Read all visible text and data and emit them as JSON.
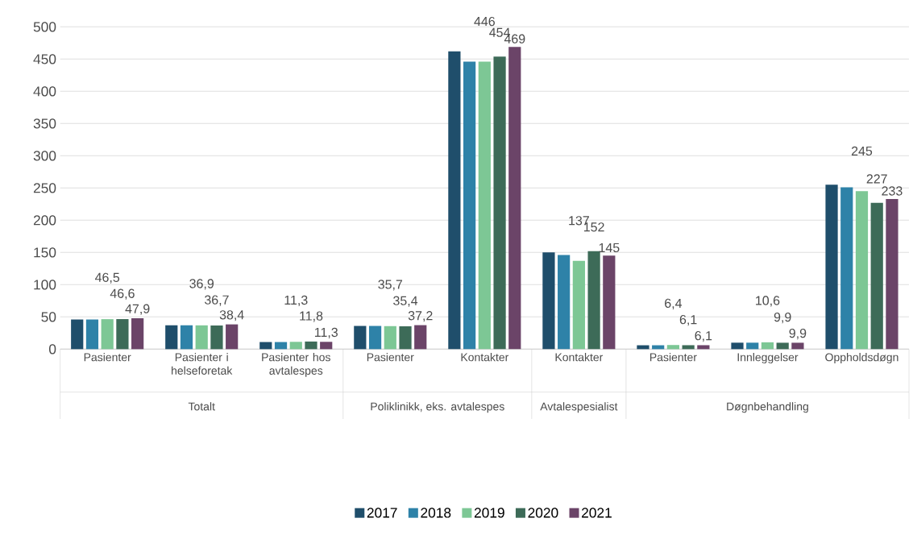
{
  "chart_data": {
    "type": "bar",
    "categories": [
      "Pasienter",
      "Pasienter i helseforetak",
      "Pasienter hos avtalespes",
      "Pasienter",
      "Kontakter",
      "Kontakter",
      "Pasienter",
      "Innleggelser",
      "Oppholdsdøgn"
    ],
    "series": [
      {
        "name": "2017",
        "color": "#1f4e6b",
        "values": [
          46,
          37,
          11,
          36,
          462,
          150,
          6,
          10,
          255
        ]
      },
      {
        "name": "2018",
        "color": "#2e82a8",
        "values": [
          46,
          37,
          11,
          36,
          446,
          146,
          6,
          10,
          251
        ]
      },
      {
        "name": "2019",
        "color": "#7dc795",
        "values": [
          46.5,
          36.9,
          11.3,
          35.7,
          446,
          137,
          6.4,
          10.6,
          245
        ],
        "value_labels": [
          "46,5",
          "36,9",
          "11,3",
          "35,7",
          "446",
          "137",
          "6,4",
          "10,6",
          "245"
        ]
      },
      {
        "name": "2020",
        "color": "#3d6b58",
        "values": [
          46.6,
          36.7,
          11.8,
          35.4,
          454,
          152,
          6.1,
          9.9,
          227
        ],
        "value_labels": [
          "46,6",
          "36,7",
          "11,8",
          "35,4",
          "454",
          "152",
          "6,1",
          "9,9",
          "227"
        ]
      },
      {
        "name": "2021",
        "color": "#6b4468",
        "values": [
          47.9,
          38.4,
          11.3,
          37.2,
          469,
          145,
          6.1,
          9.9,
          233
        ],
        "value_labels": [
          "47,9",
          "38,4",
          "11,3",
          "37,2",
          "469",
          "145",
          "6,1",
          "9,9",
          "233"
        ]
      }
    ],
    "annotations": [
      "Totalt",
      "Poliklinikk, eks. avtalespes",
      "Avtalespesialist",
      "Døgnbehandling"
    ],
    "ylim": [
      0,
      500
    ],
    "yticks": [
      0,
      50,
      100,
      150,
      200,
      250,
      300,
      350,
      400,
      450,
      500
    ],
    "grid": "y",
    "legend": "bottom"
  }
}
